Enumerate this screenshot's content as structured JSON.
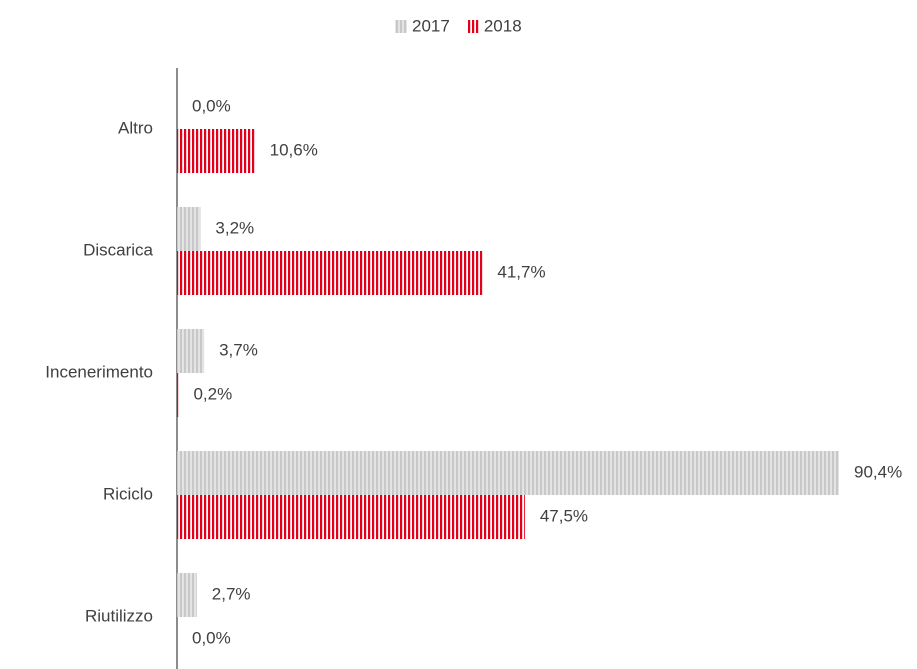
{
  "chart_data": {
    "type": "bar",
    "orientation": "horizontal",
    "categories": [
      "Altro",
      "Discarica",
      "Incenerimento",
      "Riciclo",
      "Riutilizzo"
    ],
    "series": [
      {
        "name": "2017",
        "color": "#c8c8c8",
        "values": [
          0.0,
          3.2,
          3.7,
          90.4,
          2.7
        ],
        "value_labels": [
          "0,0%",
          "3,2%",
          "3,7%",
          "90,4%",
          "2,7%"
        ]
      },
      {
        "name": "2018",
        "color": "#e3001b",
        "values": [
          10.6,
          41.7,
          0.2,
          47.5,
          0.0
        ],
        "value_labels": [
          "10,6%",
          "41,7%",
          "0,2%",
          "47,5%",
          "0,0%"
        ]
      }
    ],
    "legend": "top"
  }
}
